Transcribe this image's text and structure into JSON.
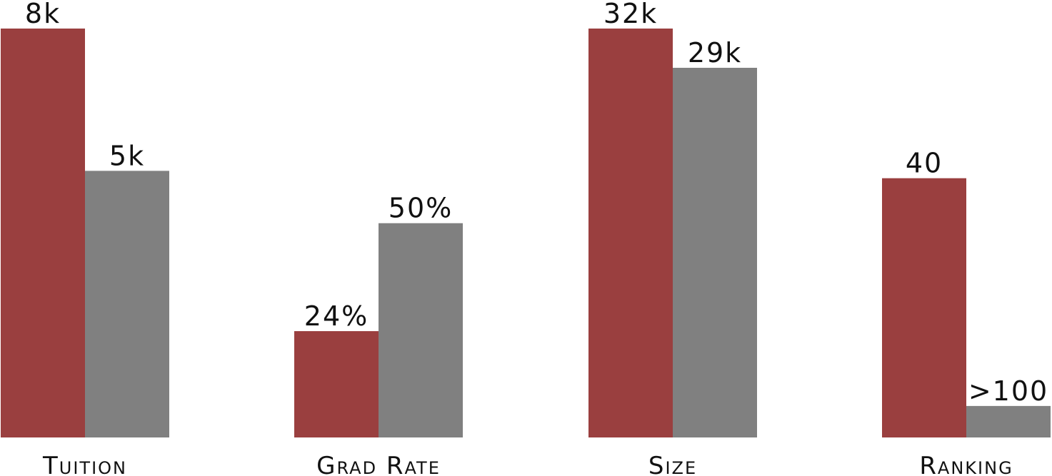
{
  "colors": {
    "series_a": "#9a3f3f",
    "series_b": "#808080",
    "background": "#ffffff"
  },
  "chart_data": {
    "type": "bar",
    "categories": [
      "Tuition",
      "Grad Rate",
      "Size",
      "Ranking"
    ],
    "series": [
      {
        "color": "#9a3f3f",
        "heights": [
          1.0,
          0.26,
          1.0,
          0.634
        ],
        "labels": [
          "8k",
          "24%",
          "32k",
          "40"
        ]
      },
      {
        "color": "#808080",
        "heights": [
          0.652,
          0.524,
          0.904,
          0.077
        ],
        "labels": [
          "5k",
          "50%",
          "29k",
          ">100"
        ]
      }
    ],
    "value_scale": "per-category relative heights (no shared axis)",
    "grid": false,
    "legend": "none",
    "title": "",
    "xlabel": "",
    "ylabel": ""
  }
}
